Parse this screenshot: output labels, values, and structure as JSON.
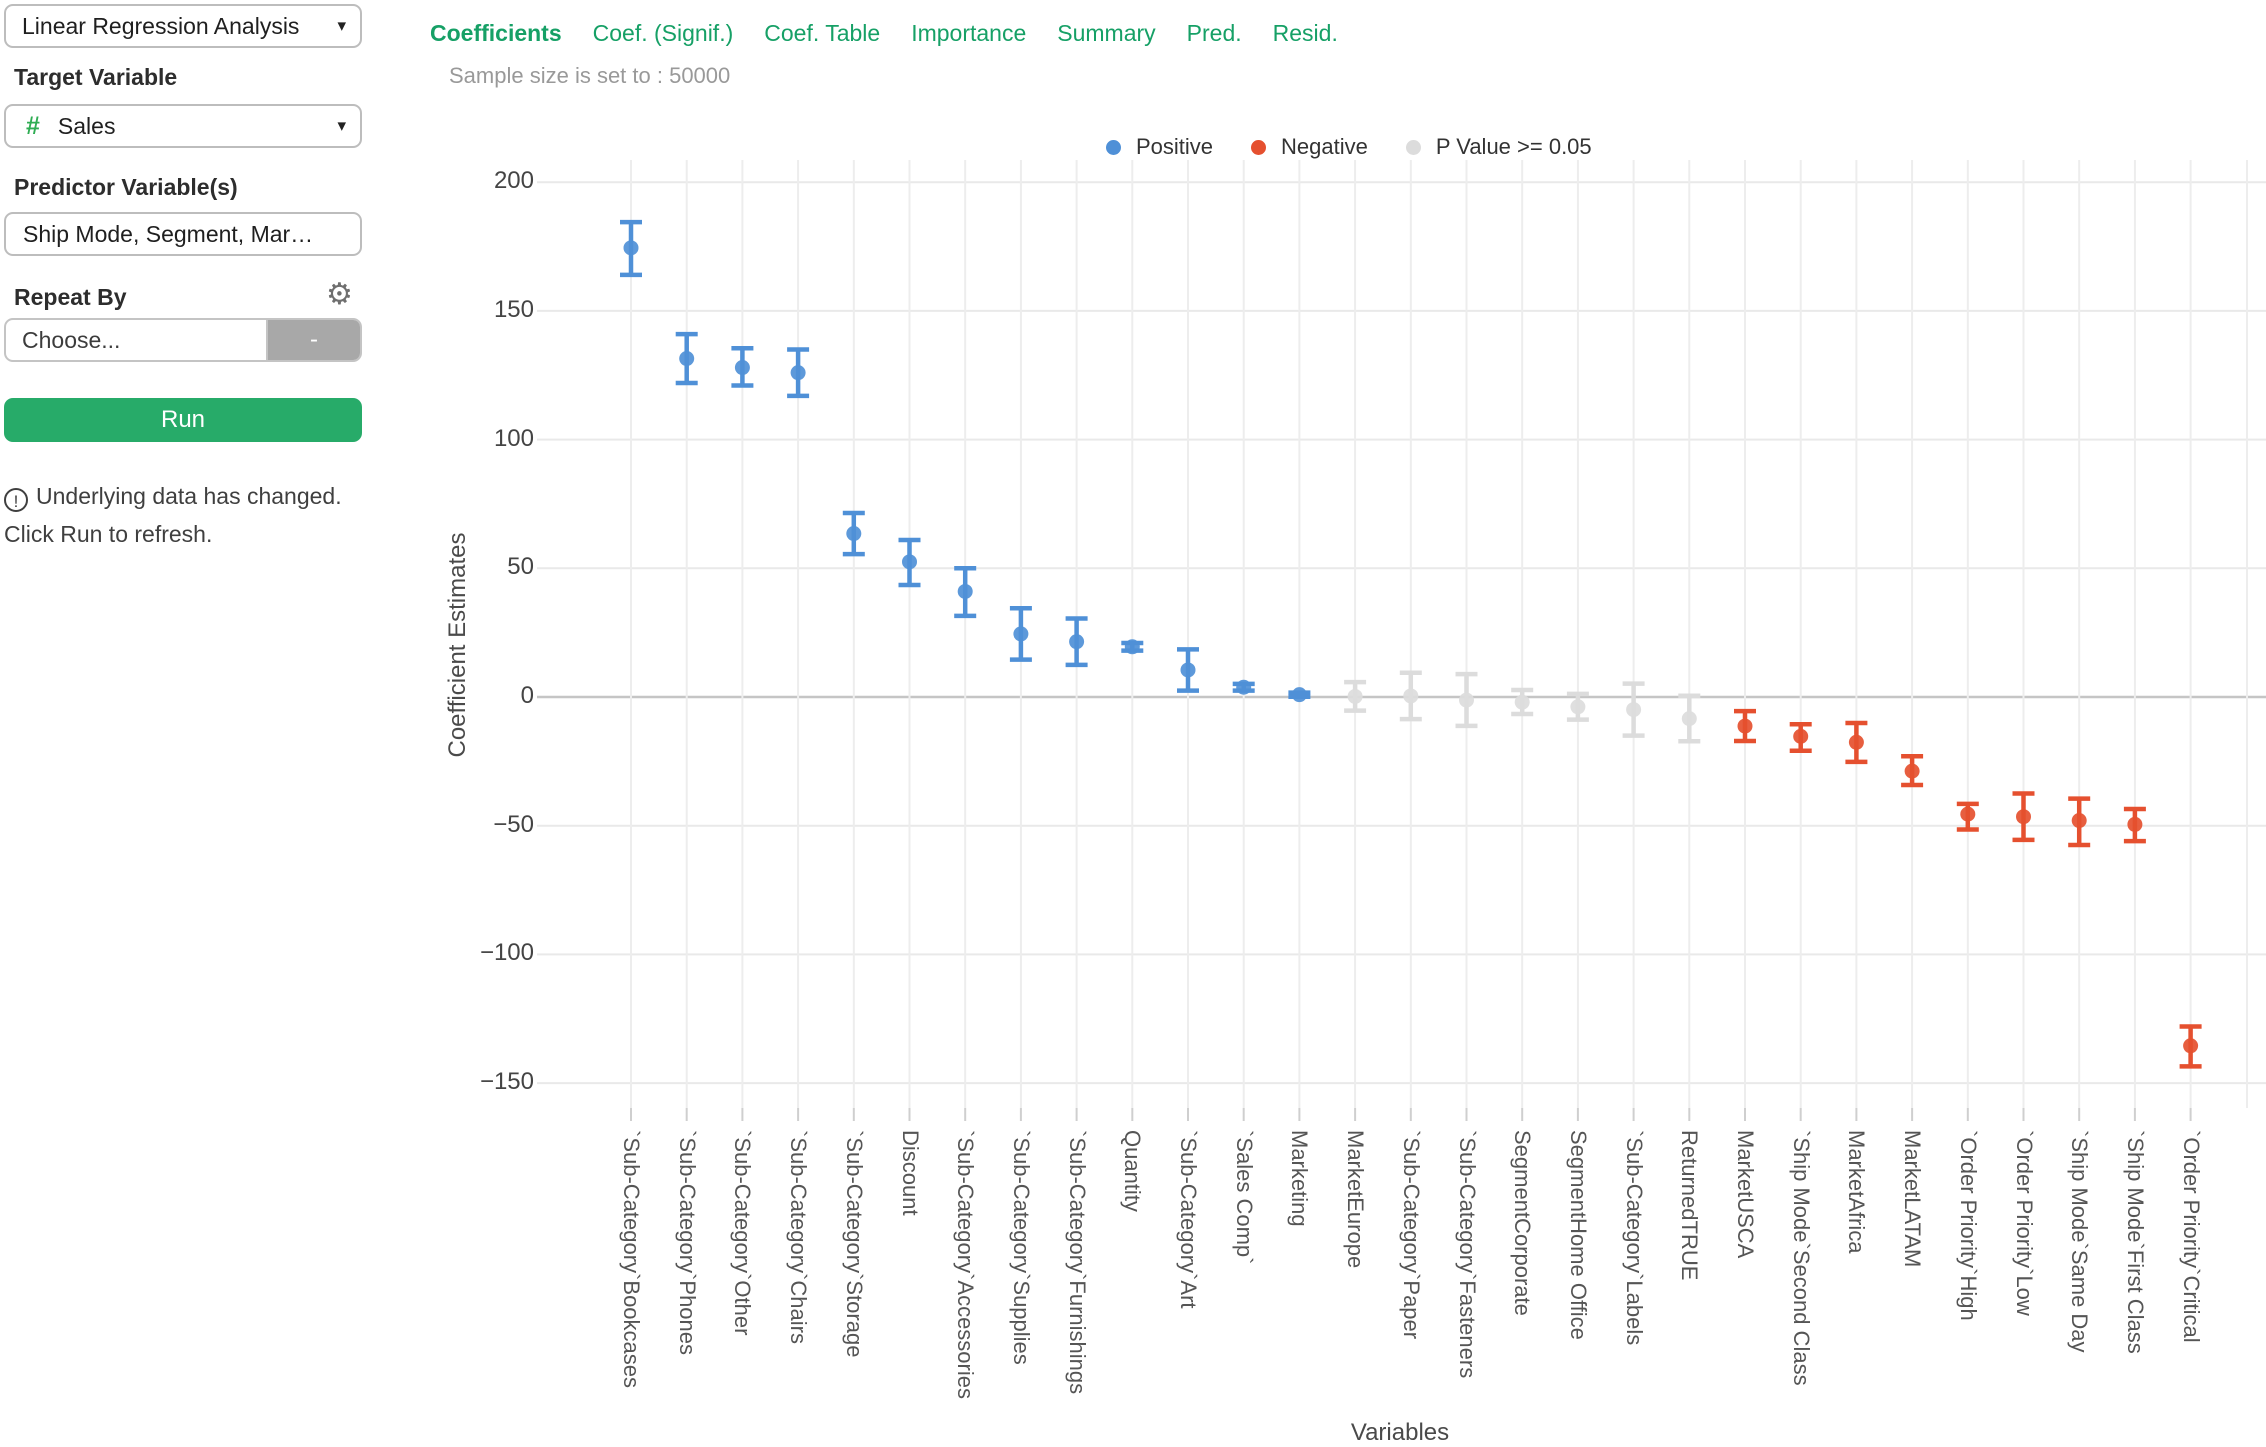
{
  "sidebar": {
    "analysis_selector": {
      "value": "Linear Regression Analysis"
    },
    "target": {
      "label": "Target Variable",
      "icon": "#",
      "value": "Sales"
    },
    "predictor": {
      "label": "Predictor Variable(s)",
      "value": "Ship Mode, Segment, Mar…"
    },
    "repeat_by": {
      "label": "Repeat By",
      "placeholder": "Choose...",
      "clear_button": "-"
    },
    "run_button": "Run",
    "warning": "Underlying data has changed. Click Run to refresh."
  },
  "tabs": {
    "items": [
      "Coefficients",
      "Coef. (Signif.)",
      "Coef. Table",
      "Importance",
      "Summary",
      "Pred.",
      "Resid."
    ],
    "active": "Coefficients"
  },
  "subtitle": "Sample size is set to : 50000",
  "colors": {
    "positive": "#4f90d7",
    "negative": "#e5502f",
    "not_significant": "#dcdcdc",
    "tab_green": "#16a066",
    "run_green": "#27ab69",
    "hash_green": "#2fad53"
  },
  "chart_data": {
    "type": "scatter",
    "subtype": "coefficient-error-bars",
    "title": "",
    "xlabel": "Variables",
    "ylabel": "Coefficient Estimates",
    "yticks": [
      200,
      150,
      100,
      50,
      0,
      -50,
      -100,
      -150
    ],
    "ylim": [
      -160,
      209
    ],
    "grid": true,
    "legend_position": "top",
    "legend": [
      {
        "label": "Positive",
        "color": "#4f90d7",
        "group": "positive"
      },
      {
        "label": "Negative",
        "color": "#e5502f",
        "group": "negative"
      },
      {
        "label": "P Value >= 0.05",
        "color": "#dcdcdc",
        "group": "ns"
      }
    ],
    "points": [
      {
        "variable": "`Sub-Category`Bookcases",
        "estimate": 174.5,
        "ci_low": 164.0,
        "ci_high": 184.5,
        "group": "positive"
      },
      {
        "variable": "`Sub-Category`Phones",
        "estimate": 131.5,
        "ci_low": 122.0,
        "ci_high": 141.0,
        "group": "positive"
      },
      {
        "variable": "`Sub-Category`Other",
        "estimate": 128.0,
        "ci_low": 121.0,
        "ci_high": 135.5,
        "group": "positive"
      },
      {
        "variable": "`Sub-Category`Chairs",
        "estimate": 126.0,
        "ci_low": 117.0,
        "ci_high": 135.0,
        "group": "positive"
      },
      {
        "variable": "`Sub-Category`Storage",
        "estimate": 63.5,
        "ci_low": 55.5,
        "ci_high": 71.5,
        "group": "positive"
      },
      {
        "variable": "Discount",
        "estimate": 52.5,
        "ci_low": 43.5,
        "ci_high": 61.0,
        "group": "positive"
      },
      {
        "variable": "`Sub-Category`Accessories",
        "estimate": 41.0,
        "ci_low": 31.5,
        "ci_high": 50.0,
        "group": "positive"
      },
      {
        "variable": "`Sub-Category`Supplies",
        "estimate": 24.5,
        "ci_low": 14.5,
        "ci_high": 34.5,
        "group": "positive"
      },
      {
        "variable": "`Sub-Category`Furnishings",
        "estimate": 21.5,
        "ci_low": 12.5,
        "ci_high": 30.5,
        "group": "positive"
      },
      {
        "variable": "Quantity",
        "estimate": 19.5,
        "ci_low": 18.0,
        "ci_high": 21.0,
        "group": "positive"
      },
      {
        "variable": "`Sub-Category`Art",
        "estimate": 10.5,
        "ci_low": 2.5,
        "ci_high": 18.5,
        "group": "positive"
      },
      {
        "variable": "`Sales Comp`",
        "estimate": 3.8,
        "ci_low": 2.5,
        "ci_high": 5.1,
        "group": "positive"
      },
      {
        "variable": "Marketing",
        "estimate": 0.9,
        "ci_low": 0.1,
        "ci_high": 1.7,
        "group": "positive"
      },
      {
        "variable": "MarketEurope",
        "estimate": 0.2,
        "ci_low": -5.3,
        "ci_high": 5.8,
        "group": "ns"
      },
      {
        "variable": "`Sub-Category`Paper",
        "estimate": 0.4,
        "ci_low": -8.6,
        "ci_high": 9.4,
        "group": "ns"
      },
      {
        "variable": "`Sub-Category`Fasteners",
        "estimate": -1.2,
        "ci_low": -11.2,
        "ci_high": 8.9,
        "group": "ns"
      },
      {
        "variable": "SegmentCorporate",
        "estimate": -2.0,
        "ci_low": -6.6,
        "ci_high": 2.7,
        "group": "ns"
      },
      {
        "variable": "SegmentHome Office",
        "estimate": -3.8,
        "ci_low": -8.8,
        "ci_high": 1.2,
        "group": "ns"
      },
      {
        "variable": "`Sub-Category`Labels",
        "estimate": -4.9,
        "ci_low": -15.0,
        "ci_high": 5.2,
        "group": "ns"
      },
      {
        "variable": "ReturnedTRUE",
        "estimate": -8.4,
        "ci_low": -17.2,
        "ci_high": 0.5,
        "group": "ns"
      },
      {
        "variable": "MarketUSCA",
        "estimate": -11.3,
        "ci_low": -17.1,
        "ci_high": -5.5,
        "group": "negative"
      },
      {
        "variable": "`Ship Mode`Second Class",
        "estimate": -15.3,
        "ci_low": -20.9,
        "ci_high": -10.6,
        "group": "negative"
      },
      {
        "variable": "MarketAfrica",
        "estimate": -17.6,
        "ci_low": -25.2,
        "ci_high": -10.1,
        "group": "negative"
      },
      {
        "variable": "MarketLATAM",
        "estimate": -28.8,
        "ci_low": -34.2,
        "ci_high": -23.0,
        "group": "negative"
      },
      {
        "variable": "`Order Priority`High",
        "estimate": -45.5,
        "ci_low": -51.5,
        "ci_high": -41.5,
        "group": "negative"
      },
      {
        "variable": "`Order Priority`Low",
        "estimate": -46.5,
        "ci_low": -55.5,
        "ci_high": -37.5,
        "group": "negative"
      },
      {
        "variable": "`Ship Mode`Same Day",
        "estimate": -48.0,
        "ci_low": -57.5,
        "ci_high": -39.5,
        "group": "negative"
      },
      {
        "variable": "`Ship Mode`First Class",
        "estimate": -49.5,
        "ci_low": -56.0,
        "ci_high": -43.5,
        "group": "negative"
      },
      {
        "variable": "`Order Priority`Critical",
        "estimate": -135.5,
        "ci_low": -143.5,
        "ci_high": -128.0,
        "group": "negative"
      }
    ]
  }
}
